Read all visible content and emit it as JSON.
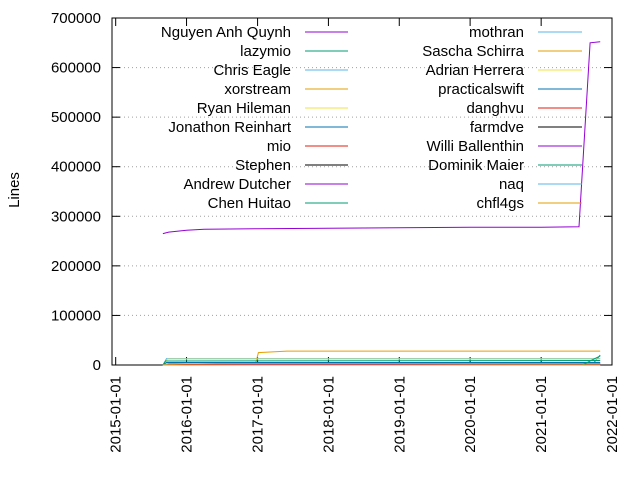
{
  "chart_data": {
    "type": "line",
    "ylabel": "Lines",
    "xlabel": "",
    "title": "",
    "ylim": [
      0,
      700000
    ],
    "xlim": [
      "2014-12-13",
      "2022-01-01"
    ],
    "yticks": [
      0,
      100000,
      200000,
      300000,
      400000,
      500000,
      600000,
      700000
    ],
    "xticks": [
      "2015-01-01",
      "2016-01-01",
      "2017-01-01",
      "2018-01-01",
      "2019-01-01",
      "2020-01-01",
      "2021-01-01",
      "2022-01-01"
    ],
    "grid": "horizontal dotted",
    "legend_position": "top, two columns",
    "series": [
      {
        "name": "Nguyen Anh Quynh",
        "color": "#9400d3",
        "points": [
          [
            "2015-09-01",
            265000
          ],
          [
            "2015-10-01",
            268000
          ],
          [
            "2016-01-01",
            272000
          ],
          [
            "2016-04-01",
            274000
          ],
          [
            "2017-01-01",
            275000
          ],
          [
            "2018-01-01",
            276000
          ],
          [
            "2019-01-01",
            277000
          ],
          [
            "2020-01-01",
            278000
          ],
          [
            "2021-01-01",
            278000
          ],
          [
            "2021-07-15",
            279000
          ],
          [
            "2021-09-10",
            650000
          ],
          [
            "2021-11-01",
            652000
          ]
        ]
      },
      {
        "name": "lazymio",
        "color": "#009e73",
        "points": [
          [
            "2015-09-01",
            0
          ],
          [
            "2021-09-01",
            0
          ],
          [
            "2021-10-01",
            5000
          ],
          [
            "2021-11-01",
            20000
          ]
        ]
      },
      {
        "name": "Chris Eagle",
        "color": "#56b4e9",
        "points": [
          [
            "2015-09-01",
            0
          ],
          [
            "2015-09-20",
            13000
          ],
          [
            "2021-11-01",
            13000
          ]
        ]
      },
      {
        "name": "xorstream",
        "color": "#e69f00",
        "points": [
          [
            "2015-09-01",
            0
          ],
          [
            "2016-12-20",
            0
          ],
          [
            "2017-01-05",
            25000
          ],
          [
            "2017-06-01",
            28000
          ],
          [
            "2021-11-01",
            28000
          ]
        ]
      },
      {
        "name": "Ryan Hileman",
        "color": "#f0e442",
        "points": [
          [
            "2015-09-01",
            0
          ],
          [
            "2015-09-25",
            12000
          ],
          [
            "2021-11-01",
            12000
          ]
        ]
      },
      {
        "name": "Jonathon Reinhart",
        "color": "#0072b2",
        "points": [
          [
            "2015-09-01",
            0
          ],
          [
            "2015-09-20",
            5000
          ],
          [
            "2021-11-01",
            5000
          ]
        ]
      },
      {
        "name": "mio",
        "color": "#e51e10",
        "points": [
          [
            "2015-09-01",
            0
          ],
          [
            "2021-11-01",
            1000
          ]
        ]
      },
      {
        "name": "Stephen",
        "color": "#000000",
        "points": [
          [
            "2015-09-01",
            0
          ],
          [
            "2021-11-01",
            500
          ]
        ]
      },
      {
        "name": "Andrew Dutcher",
        "color": "#9400d3",
        "points": [
          [
            "2015-09-01",
            0
          ],
          [
            "2015-10-01",
            1500
          ],
          [
            "2021-11-01",
            2000
          ]
        ]
      },
      {
        "name": "Chen Huitao",
        "color": "#009e73",
        "points": [
          [
            "2015-09-01",
            0
          ],
          [
            "2015-09-15",
            8000
          ],
          [
            "2021-11-01",
            9000
          ]
        ]
      },
      {
        "name": "mothran",
        "color": "#56b4e9",
        "points": [
          [
            "2015-09-01",
            0
          ],
          [
            "2015-10-01",
            3000
          ],
          [
            "2021-11-01",
            3000
          ]
        ]
      },
      {
        "name": "Sascha Schirra",
        "color": "#e69f00",
        "points": [
          [
            "2015-09-01",
            0
          ],
          [
            "2016-03-01",
            1000
          ],
          [
            "2021-11-01",
            1000
          ]
        ]
      },
      {
        "name": "Adrian Herrera",
        "color": "#f0e442",
        "points": [
          [
            "2015-09-01",
            0
          ],
          [
            "2016-01-01",
            2000
          ],
          [
            "2021-11-01",
            2000
          ]
        ]
      },
      {
        "name": "practicalswift",
        "color": "#0072b2",
        "points": [
          [
            "2015-09-01",
            0
          ],
          [
            "2016-06-01",
            1500
          ],
          [
            "2021-11-01",
            1500
          ]
        ]
      },
      {
        "name": "danghvu",
        "color": "#e51e10",
        "points": [
          [
            "2015-09-01",
            0
          ],
          [
            "2016-01-01",
            1000
          ],
          [
            "2021-11-01",
            1000
          ]
        ]
      },
      {
        "name": "farmdve",
        "color": "#000000",
        "points": [
          [
            "2015-09-01",
            0
          ],
          [
            "2021-11-01",
            500
          ]
        ]
      },
      {
        "name": "Willi Ballenthin",
        "color": "#9400d3",
        "points": [
          [
            "2015-09-01",
            0
          ],
          [
            "2017-01-01",
            800
          ],
          [
            "2021-11-01",
            800
          ]
        ]
      },
      {
        "name": "Dominik Maier",
        "color": "#009e73",
        "points": [
          [
            "2015-09-01",
            0
          ],
          [
            "2021-08-01",
            0
          ],
          [
            "2021-10-15",
            15000
          ],
          [
            "2021-11-01",
            18000
          ]
        ]
      },
      {
        "name": "naq",
        "color": "#56b4e9",
        "points": [
          [
            "2015-09-01",
            0
          ],
          [
            "2021-11-01",
            300
          ]
        ]
      },
      {
        "name": "chfl4gs",
        "color": "#e69f00",
        "points": [
          [
            "2015-09-01",
            0
          ],
          [
            "2021-11-01",
            200
          ]
        ]
      }
    ]
  }
}
